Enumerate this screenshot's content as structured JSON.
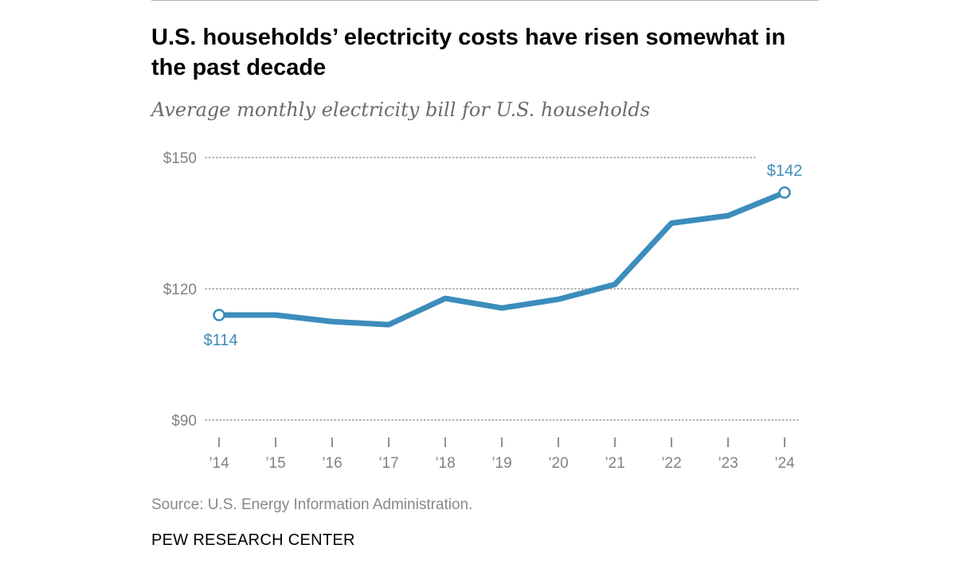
{
  "colors": {
    "line": "#3c8dbc",
    "grid": "#9a9a9a",
    "axis_text": "#828282"
  },
  "chart_data": {
    "type": "line",
    "title": "U.S. households’ electricity costs have risen somewhat in the past decade",
    "subtitle": "Average monthly electricity bill for U.S. households",
    "categories": [
      "’14",
      "’15",
      "’16",
      "’17",
      "’18",
      "’19",
      "’20",
      "’21",
      "’22",
      "’23",
      "’24"
    ],
    "series": [
      {
        "name": "Average monthly electricity bill",
        "values": [
          114,
          114,
          112.5,
          111.8,
          117.8,
          115.6,
          117.6,
          121,
          135,
          136.7,
          142
        ]
      }
    ],
    "y_ticks": [
      {
        "value": 150,
        "label": "$150"
      },
      {
        "value": 120,
        "label": "$120"
      },
      {
        "value": 90,
        "label": "$90"
      }
    ],
    "ylim": [
      90,
      150
    ],
    "data_labels": [
      {
        "index": 0,
        "label": "$114"
      },
      {
        "index": 10,
        "label": "$142"
      }
    ],
    "grid": true,
    "legend": "none"
  },
  "footer": {
    "source": "Source: U.S. Energy Information Administration.",
    "org": "PEW RESEARCH CENTER"
  }
}
